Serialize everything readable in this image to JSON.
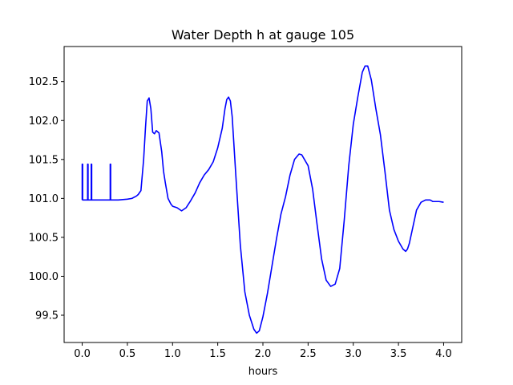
{
  "chart_data": {
    "type": "line",
    "title": "Water Depth h at gauge 105",
    "xlabel": "hours",
    "ylabel": "",
    "xlim": [
      -0.2,
      4.2
    ],
    "ylim": [
      99.15,
      102.95
    ],
    "x_ticks": [
      0.0,
      0.5,
      1.0,
      1.5,
      2.0,
      2.5,
      3.0,
      3.5,
      4.0
    ],
    "x_tick_labels": [
      "0.0",
      "0.5",
      "1.0",
      "1.5",
      "2.0",
      "2.5",
      "3.0",
      "3.5",
      "4.0"
    ],
    "y_ticks": [
      99.5,
      100.0,
      100.5,
      101.0,
      101.5,
      102.0,
      102.5
    ],
    "y_tick_labels": [
      "99.5",
      "100.0",
      "100.5",
      "101.0",
      "101.5",
      "102.0",
      "102.5"
    ],
    "grid": false,
    "series": [
      {
        "color": "#0000ff",
        "x": [
          0.0,
          0.0,
          0.005,
          0.005,
          0.06,
          0.06,
          0.065,
          0.065,
          0.1,
          0.1,
          0.105,
          0.105,
          0.31,
          0.31,
          0.315,
          0.315,
          0.4,
          0.5,
          0.55,
          0.6,
          0.62,
          0.65,
          0.68,
          0.7,
          0.72,
          0.74,
          0.76,
          0.78,
          0.8,
          0.82,
          0.85,
          0.88,
          0.9,
          0.92,
          0.95,
          0.98,
          1.0,
          1.05,
          1.1,
          1.15,
          1.2,
          1.25,
          1.3,
          1.35,
          1.4,
          1.45,
          1.5,
          1.55,
          1.58,
          1.6,
          1.62,
          1.64,
          1.66,
          1.7,
          1.75,
          1.8,
          1.85,
          1.9,
          1.93,
          1.96,
          2.0,
          2.05,
          2.1,
          2.15,
          2.2,
          2.25,
          2.3,
          2.35,
          2.4,
          2.43,
          2.46,
          2.5,
          2.55,
          2.6,
          2.65,
          2.7,
          2.75,
          2.8,
          2.85,
          2.9,
          2.95,
          3.0,
          3.05,
          3.1,
          3.13,
          3.16,
          3.2,
          3.25,
          3.3,
          3.35,
          3.4,
          3.45,
          3.5,
          3.55,
          3.58,
          3.6,
          3.62,
          3.65,
          3.7,
          3.75,
          3.8,
          3.85,
          3.88,
          3.9,
          3.95,
          4.0
        ],
        "y": [
          100.98,
          101.44,
          101.44,
          100.98,
          100.98,
          101.44,
          101.44,
          100.98,
          100.98,
          101.44,
          101.44,
          100.98,
          100.98,
          101.44,
          101.44,
          100.98,
          100.98,
          100.99,
          101.0,
          101.03,
          101.05,
          101.1,
          101.5,
          101.9,
          102.25,
          102.29,
          102.15,
          101.85,
          101.83,
          101.87,
          101.84,
          101.6,
          101.35,
          101.2,
          101.0,
          100.93,
          100.9,
          100.88,
          100.84,
          100.88,
          100.97,
          101.07,
          101.2,
          101.3,
          101.37,
          101.47,
          101.65,
          101.9,
          102.15,
          102.27,
          102.3,
          102.25,
          102.05,
          101.3,
          100.4,
          99.8,
          99.5,
          99.32,
          99.27,
          99.3,
          99.48,
          99.78,
          100.13,
          100.48,
          100.8,
          101.02,
          101.3,
          101.5,
          101.57,
          101.56,
          101.5,
          101.42,
          101.12,
          100.66,
          100.22,
          99.95,
          99.87,
          99.9,
          100.1,
          100.72,
          101.42,
          101.95,
          102.3,
          102.62,
          102.7,
          102.7,
          102.52,
          102.15,
          101.82,
          101.35,
          100.85,
          100.6,
          100.45,
          100.35,
          100.32,
          100.35,
          100.42,
          100.58,
          100.85,
          100.95,
          100.98,
          100.98,
          100.96,
          100.96,
          100.96,
          100.95
        ]
      }
    ]
  }
}
